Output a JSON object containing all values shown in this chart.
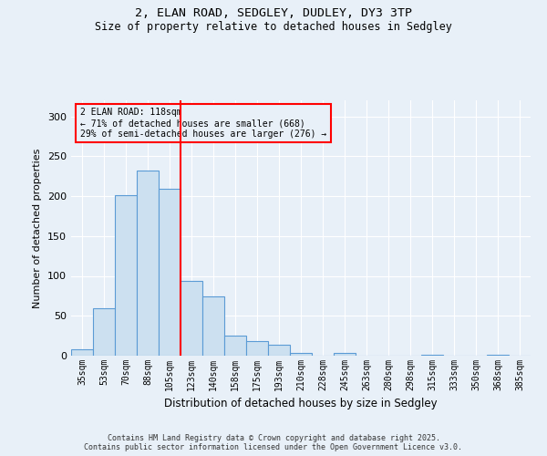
{
  "title1": "2, ELAN ROAD, SEDGLEY, DUDLEY, DY3 3TP",
  "title2": "Size of property relative to detached houses in Sedgley",
  "xlabel": "Distribution of detached houses by size in Sedgley",
  "ylabel": "Number of detached properties",
  "categories": [
    "35sqm",
    "53sqm",
    "70sqm",
    "88sqm",
    "105sqm",
    "123sqm",
    "140sqm",
    "158sqm",
    "175sqm",
    "193sqm",
    "210sqm",
    "228sqm",
    "245sqm",
    "263sqm",
    "280sqm",
    "298sqm",
    "315sqm",
    "333sqm",
    "350sqm",
    "368sqm",
    "385sqm"
  ],
  "values": [
    8,
    60,
    201,
    232,
    209,
    94,
    74,
    25,
    18,
    14,
    4,
    0,
    4,
    0,
    0,
    0,
    1,
    0,
    0,
    1,
    0
  ],
  "bar_color": "#cce0f0",
  "bar_edge_color": "#5b9bd5",
  "vline_pos": 4.5,
  "vline_color": "red",
  "annotation_title": "2 ELAN ROAD: 118sqm",
  "annotation_line1": "← 71% of detached houses are smaller (668)",
  "annotation_line2": "29% of semi-detached houses are larger (276) →",
  "annotation_box_color": "red",
  "background_color": "#e8f0f8",
  "grid_color": "white",
  "footer1": "Contains HM Land Registry data © Crown copyright and database right 2025.",
  "footer2": "Contains public sector information licensed under the Open Government Licence v3.0.",
  "ylim": [
    0,
    320
  ],
  "yticks": [
    0,
    50,
    100,
    150,
    200,
    250,
    300
  ]
}
